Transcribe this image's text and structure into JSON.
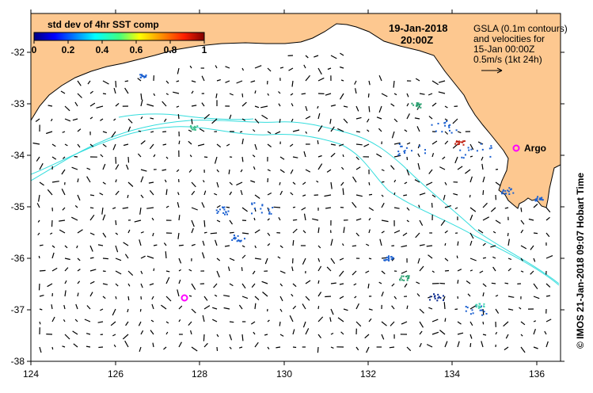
{
  "date_line": "19-Jan-2018",
  "time_line": "20:00Z",
  "legend": {
    "line1": "GSLA (0.1m contours)",
    "line2": "and velocities for",
    "line3": "15-Jan 00:00Z",
    "line4": "0.5m/s (1kt 24h)"
  },
  "colorbar": {
    "title": "std dev of 4hr SST comp",
    "ticks": [
      "0",
      "0.2",
      "0.4",
      "0.6",
      "0.8",
      "1"
    ]
  },
  "argo_label": "Argo",
  "credit": "© IMOS 21-Jan-2018 09:07 Hobart Time",
  "axes": {
    "x_ticks": [
      "124",
      "126",
      "128",
      "130",
      "132",
      "134",
      "136"
    ],
    "y_ticks": [
      "-32",
      "-33",
      "-34",
      "-35",
      "-36",
      "-37",
      "-38"
    ]
  },
  "colors": {
    "land": "#fdc890",
    "contour": "#33dddd",
    "argo": "#ff00ff"
  }
}
